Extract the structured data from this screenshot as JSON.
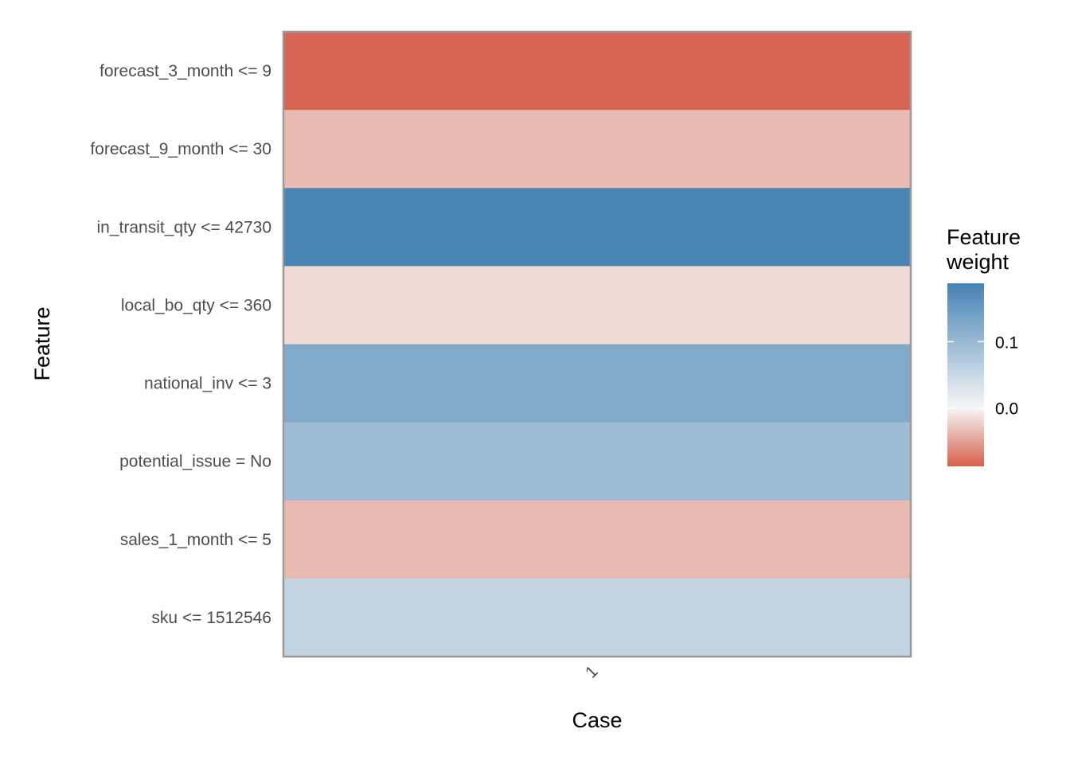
{
  "chart_data": {
    "type": "heatmap",
    "xlabel": "Case",
    "ylabel": "Feature",
    "x_categories": [
      "1"
    ],
    "y_categories": [
      "forecast_3_month <= 9",
      "forecast_9_month <= 30",
      "in_transit_qty <= 42730",
      "local_bo_qty <= 360",
      "national_inv <= 3",
      "potential_issue = No",
      "sales_1_month <= 5",
      "sku <= 1512546"
    ],
    "values": [
      -0.085,
      -0.036,
      0.185,
      -0.018,
      0.125,
      0.095,
      -0.037,
      0.055
    ],
    "legend": {
      "title_lines": [
        "Feature",
        "weight"
      ],
      "ticks": [
        0.1,
        0.0
      ],
      "tick_labels": [
        "0.1",
        "0.0"
      ],
      "range": [
        -0.088,
        0.188
      ],
      "placement": "right"
    },
    "colors": {
      "low": "#d6604d",
      "mid": "#f7f7f7",
      "high": "#4682b4",
      "panel_border": "#999999"
    },
    "grid": false
  }
}
